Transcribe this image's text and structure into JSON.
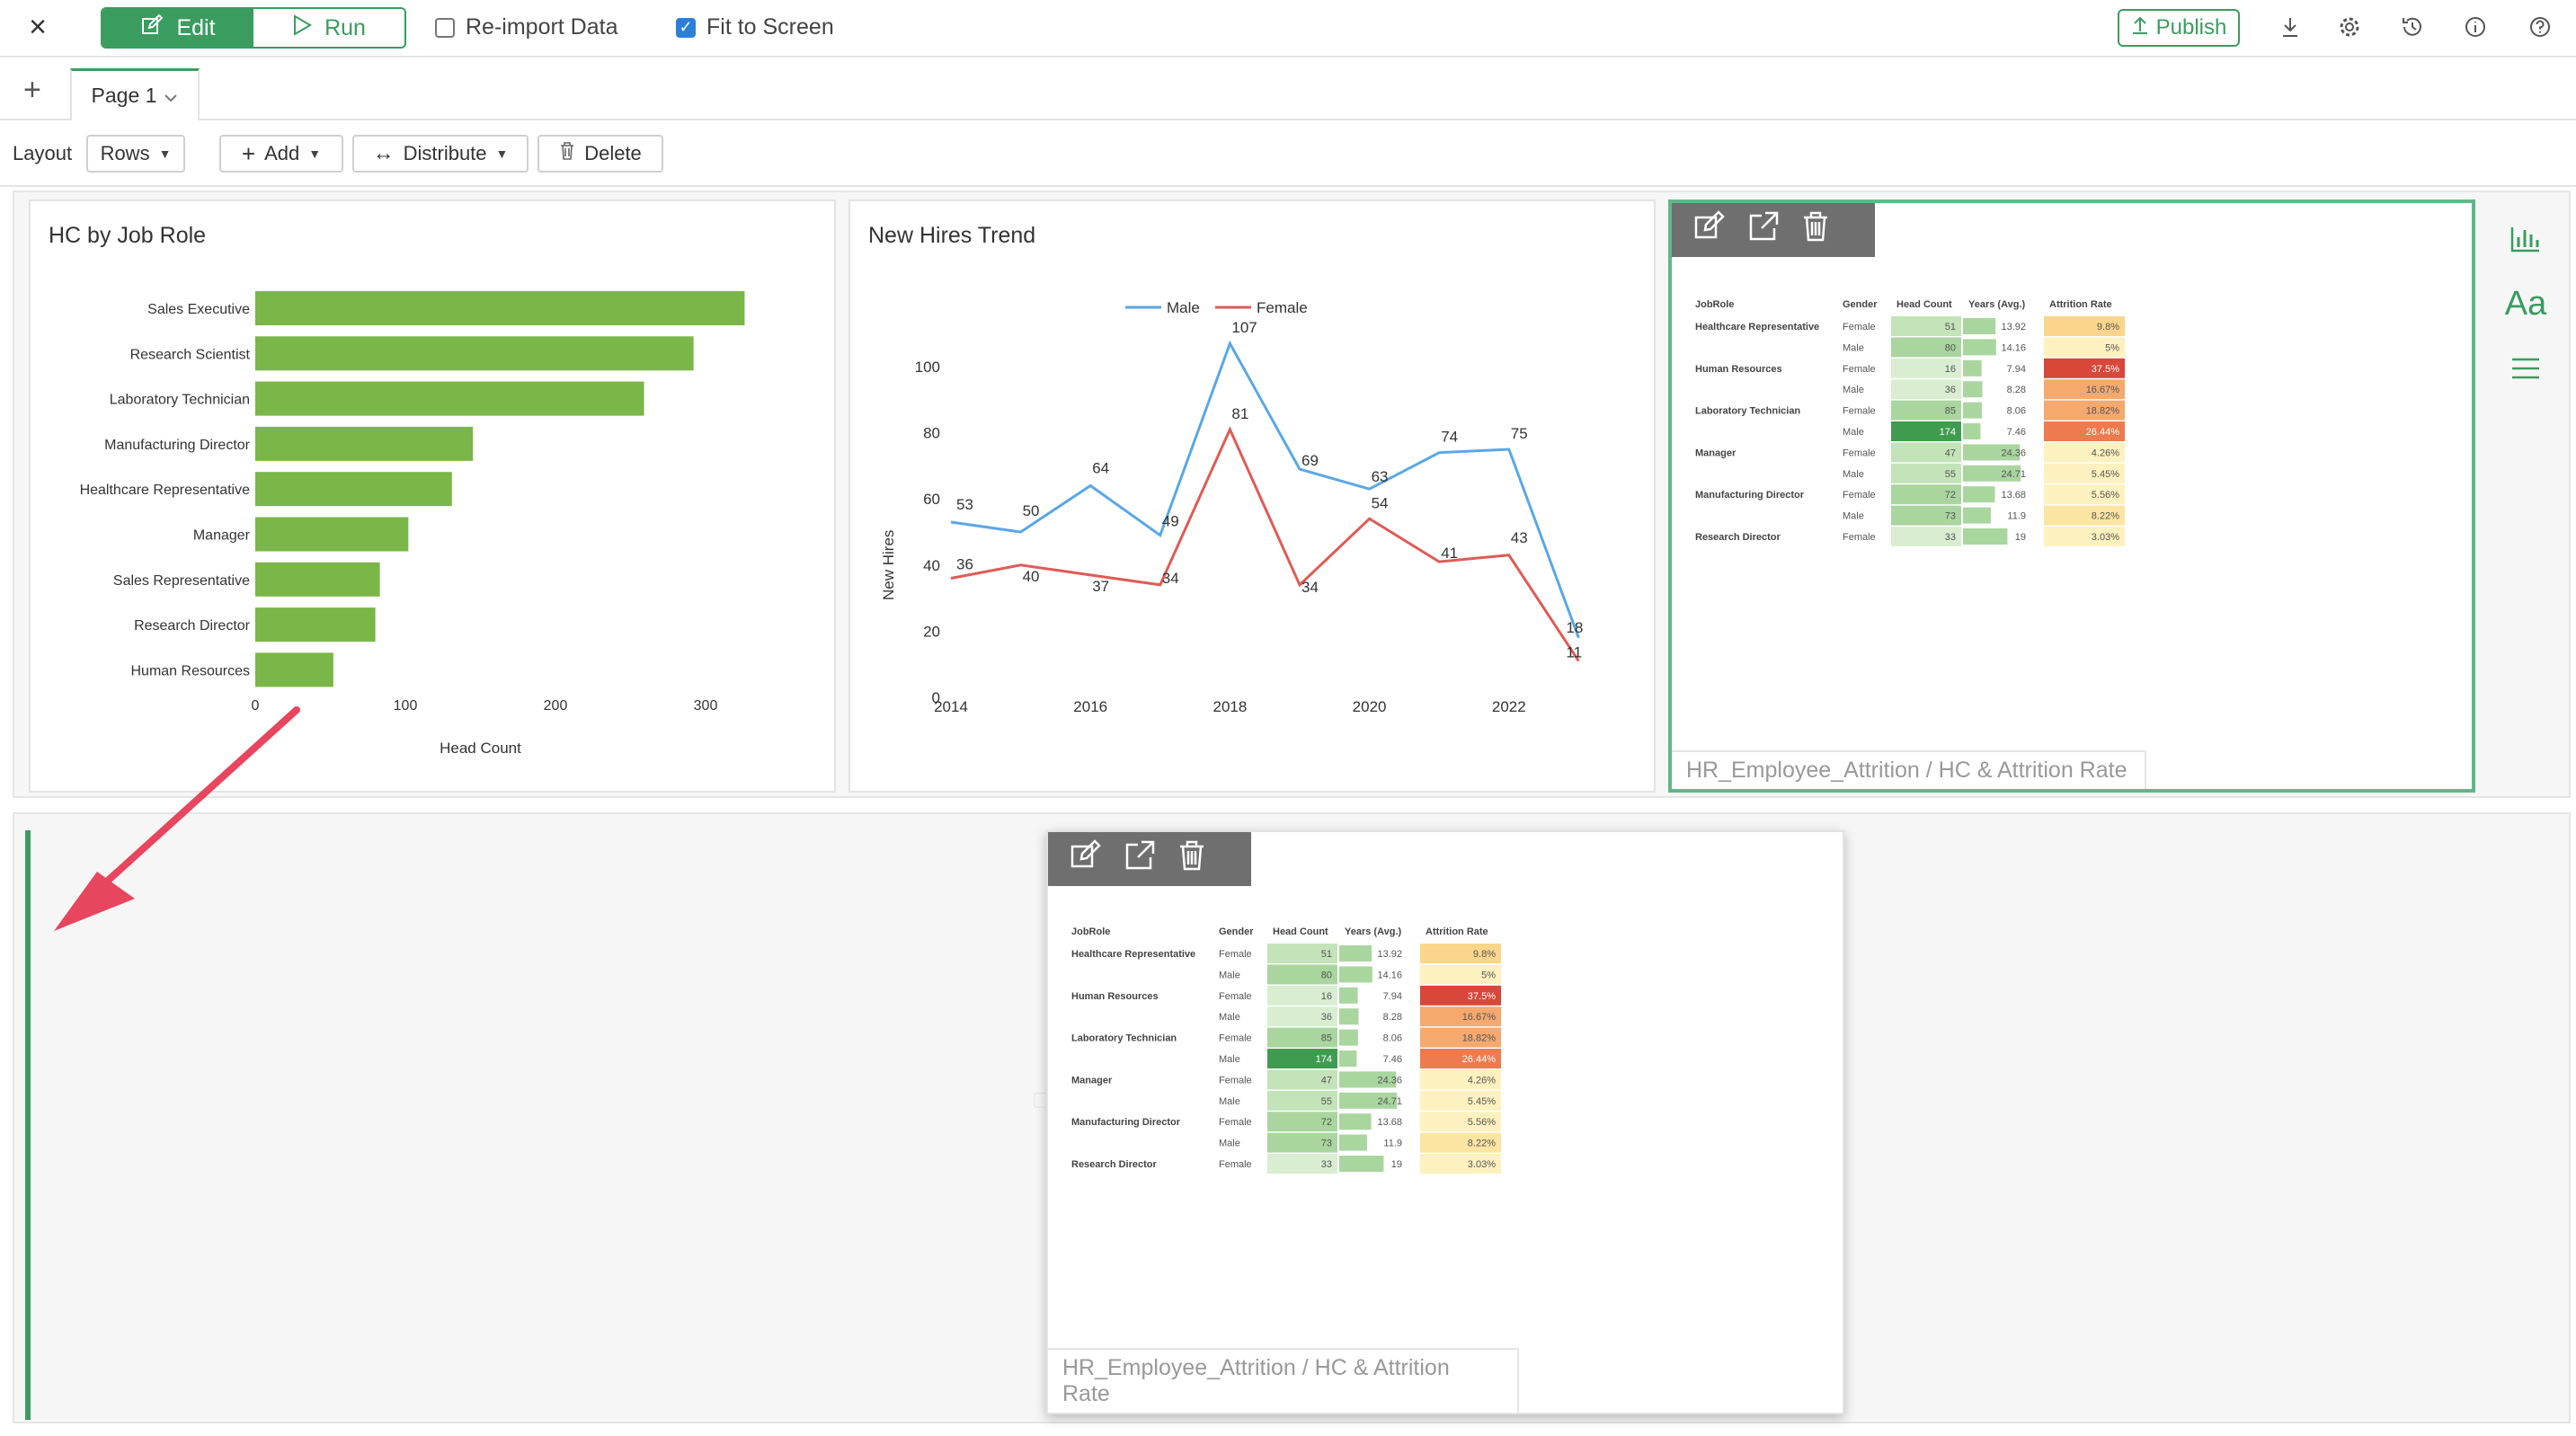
{
  "toolbar": {
    "edit_label": "Edit",
    "run_label": "Run",
    "reimport_label": "Re-import Data",
    "reimport_checked": false,
    "fit_label": "Fit to Screen",
    "fit_checked": true,
    "publish_label": "Publish"
  },
  "tabs": {
    "page_label": "Page 1"
  },
  "layoutbar": {
    "layout_label": "Layout",
    "rows_label": "Rows",
    "add_label": "Add",
    "distribute_label": "Distribute",
    "delete_label": "Delete"
  },
  "cards": {
    "bar_title": "HC by Job Role",
    "line_title": "New Hires Trend",
    "pivot_footer": "HR_Employee_Attrition / HC & Attrition Rate",
    "drag_footer": "HR_Employee_Attrition / HC & Attrition Rate"
  },
  "colors": {
    "accent": "#3a9c5f",
    "bar": "#7ab648",
    "male_line": "#5aa7e6",
    "female_line": "#e05a55"
  },
  "chart_data": [
    {
      "type": "bar",
      "orientation": "horizontal",
      "title": "HC by Job Role",
      "xlabel": "Head Count",
      "ylabel": "",
      "categories": [
        "Sales Executive",
        "Research Scientist",
        "Laboratory Technician",
        "Manufacturing Director",
        "Healthcare Representative",
        "Manager",
        "Sales Representative",
        "Research Director",
        "Human Resources"
      ],
      "values": [
        326,
        292,
        259,
        145,
        131,
        102,
        83,
        80,
        52
      ],
      "xlim": [
        0,
        300
      ],
      "xticks": [
        0,
        100,
        200,
        300
      ],
      "grid": false
    },
    {
      "type": "line",
      "title": "New Hires Trend",
      "xlabel": "",
      "ylabel": "New Hires",
      "x": [
        2014,
        2015,
        2016,
        2017,
        2018,
        2019,
        2020,
        2021,
        2022,
        2023
      ],
      "xticks": [
        2014,
        2016,
        2018,
        2020,
        2022
      ],
      "yticks": [
        0,
        20,
        40,
        60,
        80,
        100
      ],
      "ylim": [
        0,
        110
      ],
      "legend": "top-center",
      "series": [
        {
          "name": "Male",
          "values": [
            53,
            50,
            64,
            49,
            107,
            69,
            63,
            74,
            75,
            18
          ]
        },
        {
          "name": "Female",
          "values": [
            36,
            40,
            37,
            34,
            81,
            34,
            54,
            41,
            43,
            11
          ]
        }
      ]
    }
  ],
  "pivot": {
    "headers": [
      "JobRole",
      "Gender",
      "Head Count",
      "Years (Avg.)",
      "Attrition Rate"
    ],
    "rows": [
      {
        "role": "Healthcare Representative",
        "gender": "Female",
        "hc": 51,
        "years": 13.92,
        "rate": "9.8%"
      },
      {
        "role": "",
        "gender": "Male",
        "hc": 80,
        "years": 14.16,
        "rate": "5%"
      },
      {
        "role": "Human Resources",
        "gender": "Female",
        "hc": 16,
        "years": 7.94,
        "rate": "37.5%"
      },
      {
        "role": "",
        "gender": "Male",
        "hc": 36,
        "years": 8.28,
        "rate": "16.67%"
      },
      {
        "role": "Laboratory Technician",
        "gender": "Female",
        "hc": 85,
        "years": 8.06,
        "rate": "18.82%"
      },
      {
        "role": "",
        "gender": "Male",
        "hc": 174,
        "years": 7.46,
        "rate": "26.44%"
      },
      {
        "role": "Manager",
        "gender": "Female",
        "hc": 47,
        "years": 24.36,
        "rate": "4.26%"
      },
      {
        "role": "",
        "gender": "Male",
        "hc": 55,
        "years": 24.71,
        "rate": "5.45%"
      },
      {
        "role": "Manufacturing Director",
        "gender": "Female",
        "hc": 72,
        "years": 13.68,
        "rate": "5.56%"
      },
      {
        "role": "",
        "gender": "Male",
        "hc": 73,
        "years": 11.9,
        "rate": "8.22%"
      },
      {
        "role": "Research Director",
        "gender": "Female",
        "hc": 33,
        "years": 19,
        "rate": "3.03%"
      }
    ]
  }
}
